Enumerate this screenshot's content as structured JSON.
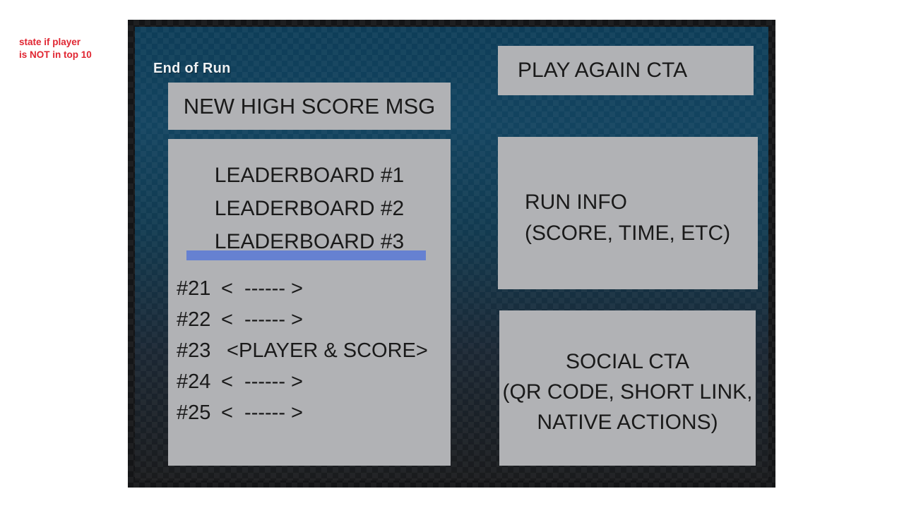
{
  "annotation": {
    "line1": "state if player",
    "line2": "is NOT in top 10"
  },
  "panel": {
    "title": "End of Run",
    "high_score_msg": "NEW HIGH SCORE MSG",
    "leaderboard": {
      "top_entries": [
        "LEADERBOARD #1",
        "LEADERBOARD #2",
        "LEADERBOARD #3"
      ],
      "rows": [
        {
          "rank": "#21",
          "value": "<  ------ >"
        },
        {
          "rank": "#22",
          "value": "<  ------ >"
        },
        {
          "rank": "#23",
          "value": " <PLAYER & SCORE>"
        },
        {
          "rank": "#24",
          "value": "<  ------ >"
        },
        {
          "rank": "#25",
          "value": "<  ------ >"
        }
      ]
    },
    "play_again_label": "PLAY AGAIN CTA",
    "run_info": {
      "line1": "RUN INFO",
      "line2": "(SCORE, TIME, ETC)"
    },
    "social": {
      "line1": "SOCIAL CTA",
      "line2": "(QR CODE, SHORT LINK,",
      "line3": "NATIVE ACTIONS)"
    }
  },
  "colors": {
    "annotation_red": "#e02531",
    "panel_teal_top": "#0e3d58",
    "panel_dark_bottom": "#1a1b1d",
    "panel_border": "#141517",
    "placeholder_gray": "#b1b2b5",
    "divider_blue": "#6681d1",
    "title_white": "#eef2f5",
    "box_text": "#1a1a1a"
  }
}
